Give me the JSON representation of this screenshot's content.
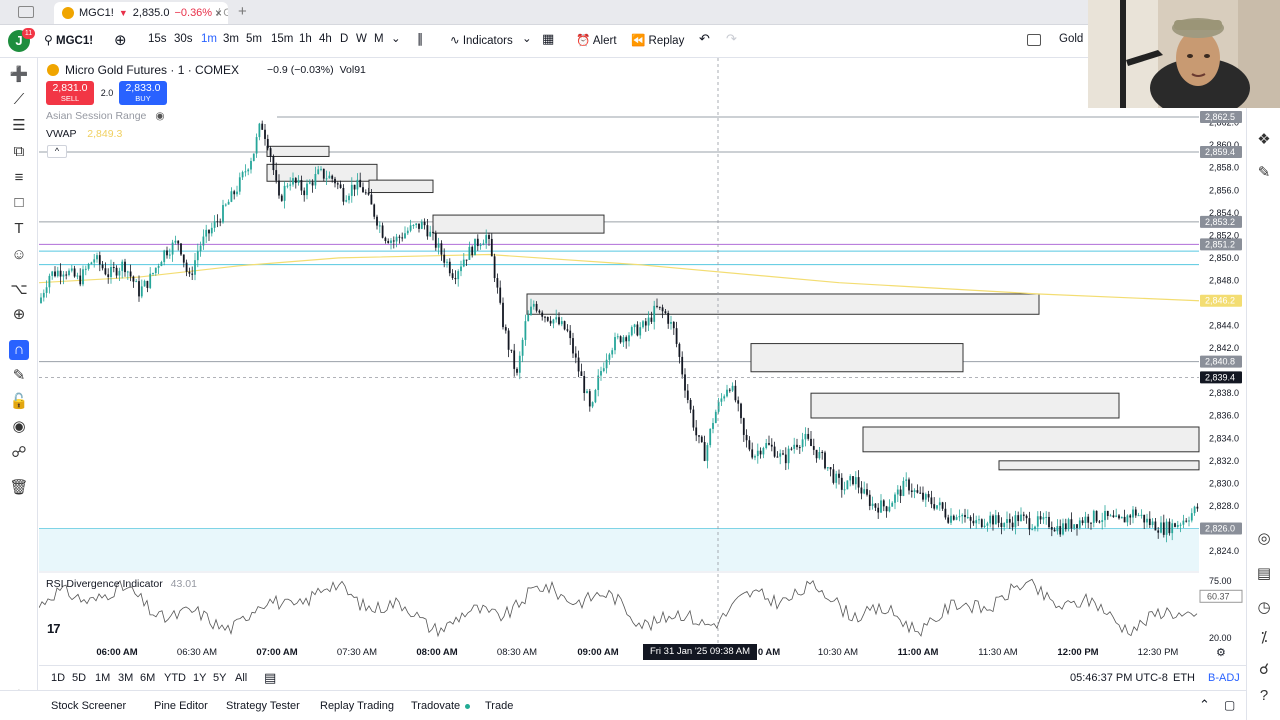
{
  "browser": {
    "tab_symbol": "MGC1!",
    "tab_arrow": "▼",
    "tab_price": "2,835.0",
    "tab_change": "−0.36%",
    "tab_suffix": "/ Gol",
    "tab_close": "×",
    "new_tab": "+"
  },
  "toolbar": {
    "avatar_initial": "J",
    "avatar_badge": "11",
    "symbol": "MGC1!",
    "intervals": [
      "15s",
      "30s",
      "1m",
      "3m",
      "5m",
      "15m",
      "1h",
      "4h",
      "D",
      "W",
      "M"
    ],
    "active_interval": "1m",
    "indicators_label": "Indicators",
    "alert_label": "Alert",
    "replay_label": "Replay",
    "watchlist_label": "Gold"
  },
  "legend": {
    "title": "Micro Gold Futures · 1 · COMEX",
    "change": "−0.9 (−0.03%)",
    "volume": "Vol91",
    "sell_price": "2,831.0",
    "sell_label": "SELL",
    "spread": "2.0",
    "buy_price": "2,833.0",
    "buy_label": "BUY",
    "indicator_1": "Asian Session Range",
    "indicator_2": "VWAP",
    "indicator_2_value": "2,849.3",
    "collapse": "^"
  },
  "price_axis": {
    "ticks": [
      "2,862.0",
      "2,860.0",
      "2,858.0",
      "2,856.0",
      "2,854.0",
      "2,852.0",
      "2,850.0",
      "2,848.0",
      "2,844.0",
      "2,842.0",
      "2,838.0",
      "2,836.0",
      "2,834.0",
      "2,832.0",
      "2,830.0",
      "2,828.0",
      "2,824.0"
    ],
    "tags": [
      {
        "label": "2,862.5",
        "color": "#8a8f99"
      },
      {
        "label": "2,859.4",
        "color": "#8a8f99"
      },
      {
        "label": "2,853.2",
        "color": "#8a8f99"
      },
      {
        "label": "2,851.2",
        "color": "#8a8f99"
      },
      {
        "label": "2,846.2",
        "color": "#f3dd72"
      },
      {
        "label": "2,840.8",
        "color": "#8a8f99"
      },
      {
        "label": "2,839.4",
        "color": "#131722"
      },
      {
        "label": "2,826.0",
        "color": "#8a8f99"
      }
    ]
  },
  "rsi": {
    "label": "RSI Divergence Indicator",
    "value": "43.01",
    "ticks": [
      "75.00",
      "20.00"
    ],
    "tag": "60.37"
  },
  "time_axis": {
    "labels": [
      {
        "t": "06:00 AM",
        "bold": true
      },
      {
        "t": "06:30 AM",
        "bold": false
      },
      {
        "t": "07:00 AM",
        "bold": true
      },
      {
        "t": "07:30 AM",
        "bold": false
      },
      {
        "t": "08:00 AM",
        "bold": true
      },
      {
        "t": "08:30 AM",
        "bold": false
      },
      {
        "t": "09:00 AM",
        "bold": true
      },
      {
        "t": "0 AM",
        "bold": true
      },
      {
        "t": "10:30 AM",
        "bold": false
      },
      {
        "t": "11:00 AM",
        "bold": true
      },
      {
        "t": "11:30 AM",
        "bold": false
      },
      {
        "t": "12:00 PM",
        "bold": true
      },
      {
        "t": "12:30 PM",
        "bold": false
      }
    ],
    "crosshair": "Fri 31 Jan '25   09:38 AM"
  },
  "range_bar": {
    "ranges": [
      "1D",
      "5D",
      "1M",
      "3M",
      "6M",
      "YTD",
      "1Y",
      "5Y",
      "All"
    ],
    "clock": "05:46:37 PM UTC-8",
    "session": "ETH",
    "adjust": "B-ADJ"
  },
  "bottom_tabs": [
    "Stock Screener",
    "Pine Editor",
    "Strategy Tester",
    "Replay Trading",
    "Tradovate",
    "Trade"
  ],
  "colors": {
    "up": "#26a69a",
    "down": "#131722",
    "accent": "#2962ff",
    "sell": "#f23645",
    "vwap": "#f3dd72"
  },
  "chart_data": {
    "type": "candlestick",
    "title": "Micro Gold Futures · 1 · COMEX",
    "x_range": [
      "05:45 AM",
      "12:45 PM"
    ],
    "ylim": [
      2823.0,
      2863.0
    ],
    "price_path": [
      [
        0,
        2846.0
      ],
      [
        10,
        2848.5
      ],
      [
        25,
        2849.0
      ],
      [
        40,
        2848.0
      ],
      [
        55,
        2850.0
      ],
      [
        70,
        2848.5
      ],
      [
        85,
        2849.5
      ],
      [
        100,
        2847.0
      ],
      [
        110,
        2848.0
      ],
      [
        125,
        2850.5
      ],
      [
        140,
        2851.5
      ],
      [
        150,
        2848.0
      ],
      [
        160,
        2851.0
      ],
      [
        180,
        2853.5
      ],
      [
        200,
        2856.5
      ],
      [
        215,
        2859.5
      ],
      [
        222,
        2862.0
      ],
      [
        230,
        2860.0
      ],
      [
        240,
        2855.0
      ],
      [
        250,
        2857.0
      ],
      [
        265,
        2856.0
      ],
      [
        280,
        2857.5
      ],
      [
        295,
        2857.0
      ],
      [
        305,
        2855.5
      ],
      [
        315,
        2856.5
      ],
      [
        325,
        2856.0
      ],
      [
        335,
        2854.0
      ],
      [
        345,
        2852.0
      ],
      [
        355,
        2851.5
      ],
      [
        370,
        2852.5
      ],
      [
        385,
        2853.0
      ],
      [
        395,
        2851.5
      ],
      [
        405,
        2850.0
      ],
      [
        415,
        2848.5
      ],
      [
        425,
        2850.0
      ],
      [
        440,
        2851.5
      ],
      [
        448,
        2852.0
      ],
      [
        455,
        2849.0
      ],
      [
        462,
        2845.0
      ],
      [
        470,
        2842.0
      ],
      [
        478,
        2839.5
      ],
      [
        486,
        2844.0
      ],
      [
        495,
        2846.0
      ],
      [
        505,
        2845.0
      ],
      [
        515,
        2844.5
      ],
      [
        528,
        2843.5
      ],
      [
        538,
        2840.5
      ],
      [
        547,
        2838.0
      ],
      [
        552,
        2836.0
      ],
      [
        560,
        2839.5
      ],
      [
        570,
        2842.0
      ],
      [
        582,
        2843.0
      ],
      [
        595,
        2843.5
      ],
      [
        607,
        2844.0
      ],
      [
        617,
        2845.5
      ],
      [
        627,
        2845.0
      ],
      [
        635,
        2843.5
      ],
      [
        643,
        2840.0
      ],
      [
        650,
        2837.0
      ],
      [
        658,
        2834.0
      ],
      [
        666,
        2832.5
      ],
      [
        675,
        2836.0
      ],
      [
        685,
        2838.0
      ],
      [
        690,
        2839.0
      ],
      [
        698,
        2837.0
      ],
      [
        705,
        2834.0
      ],
      [
        715,
        2832.5
      ],
      [
        725,
        2833.5
      ],
      [
        735,
        2833.0
      ],
      [
        745,
        2832.0
      ],
      [
        755,
        2833.5
      ],
      [
        765,
        2834.0
      ],
      [
        775,
        2833.0
      ],
      [
        785,
        2832.0
      ],
      [
        795,
        2830.5
      ],
      [
        805,
        2829.5
      ],
      [
        815,
        2830.5
      ],
      [
        825,
        2829.0
      ],
      [
        835,
        2828.0
      ],
      [
        848,
        2828.0
      ],
      [
        858,
        2829.0
      ],
      [
        868,
        2830.0
      ],
      [
        878,
        2829.0
      ],
      [
        888,
        2828.5
      ],
      [
        900,
        2828.0
      ],
      [
        910,
        2827.0
      ],
      [
        920,
        2827.5
      ],
      [
        930,
        2826.5
      ],
      [
        940,
        2826.5
      ],
      [
        950,
        2827.0
      ],
      [
        960,
        2826.5
      ],
      [
        970,
        2826.5
      ],
      [
        980,
        2827.0
      ],
      [
        990,
        2826.5
      ],
      [
        1000,
        2826.5
      ],
      [
        1010,
        2826.5
      ],
      [
        1020,
        2826.0
      ],
      [
        1035,
        2826.5
      ],
      [
        1050,
        2827.0
      ],
      [
        1065,
        2827.0
      ],
      [
        1080,
        2826.5
      ],
      [
        1095,
        2827.5
      ],
      [
        1110,
        2826.5
      ],
      [
        1125,
        2826.0
      ],
      [
        1140,
        2826.5
      ],
      [
        1155,
        2827.5
      ],
      [
        1160,
        2828.0
      ]
    ],
    "vwap": [
      [
        0,
        2847.8
      ],
      [
        100,
        2848.3
      ],
      [
        200,
        2849.3
      ],
      [
        300,
        2850.0
      ],
      [
        450,
        2850.3
      ],
      [
        600,
        2849.4
      ],
      [
        800,
        2847.8
      ],
      [
        1000,
        2846.8
      ],
      [
        1160,
        2846.2
      ]
    ],
    "horizontal_levels": [
      2862.5,
      2859.4,
      2853.2,
      2851.2,
      2850.6,
      2849.4,
      2840.8,
      2826.0
    ],
    "zones": [
      {
        "from": 228,
        "to": 290,
        "top": 2859.9,
        "bottom": 2859.0
      },
      {
        "from": 228,
        "to": 338,
        "top": 2858.3,
        "bottom": 2856.8
      },
      {
        "from": 330,
        "to": 394,
        "top": 2856.9,
        "bottom": 2855.8
      },
      {
        "from": 394,
        "to": 565,
        "top": 2853.8,
        "bottom": 2852.2
      },
      {
        "from": 488,
        "to": 1000,
        "top": 2846.8,
        "bottom": 2845.0
      },
      {
        "from": 712,
        "to": 924,
        "top": 2842.4,
        "bottom": 2839.9
      },
      {
        "from": 772,
        "to": 1080,
        "top": 2838.0,
        "bottom": 2835.8
      },
      {
        "from": 824,
        "to": 1160,
        "top": 2835.0,
        "bottom": 2832.8
      },
      {
        "from": 960,
        "to": 1160,
        "top": 2832.0,
        "bottom": 2831.2
      }
    ],
    "rsi_series_range": [
      20,
      80
    ]
  }
}
